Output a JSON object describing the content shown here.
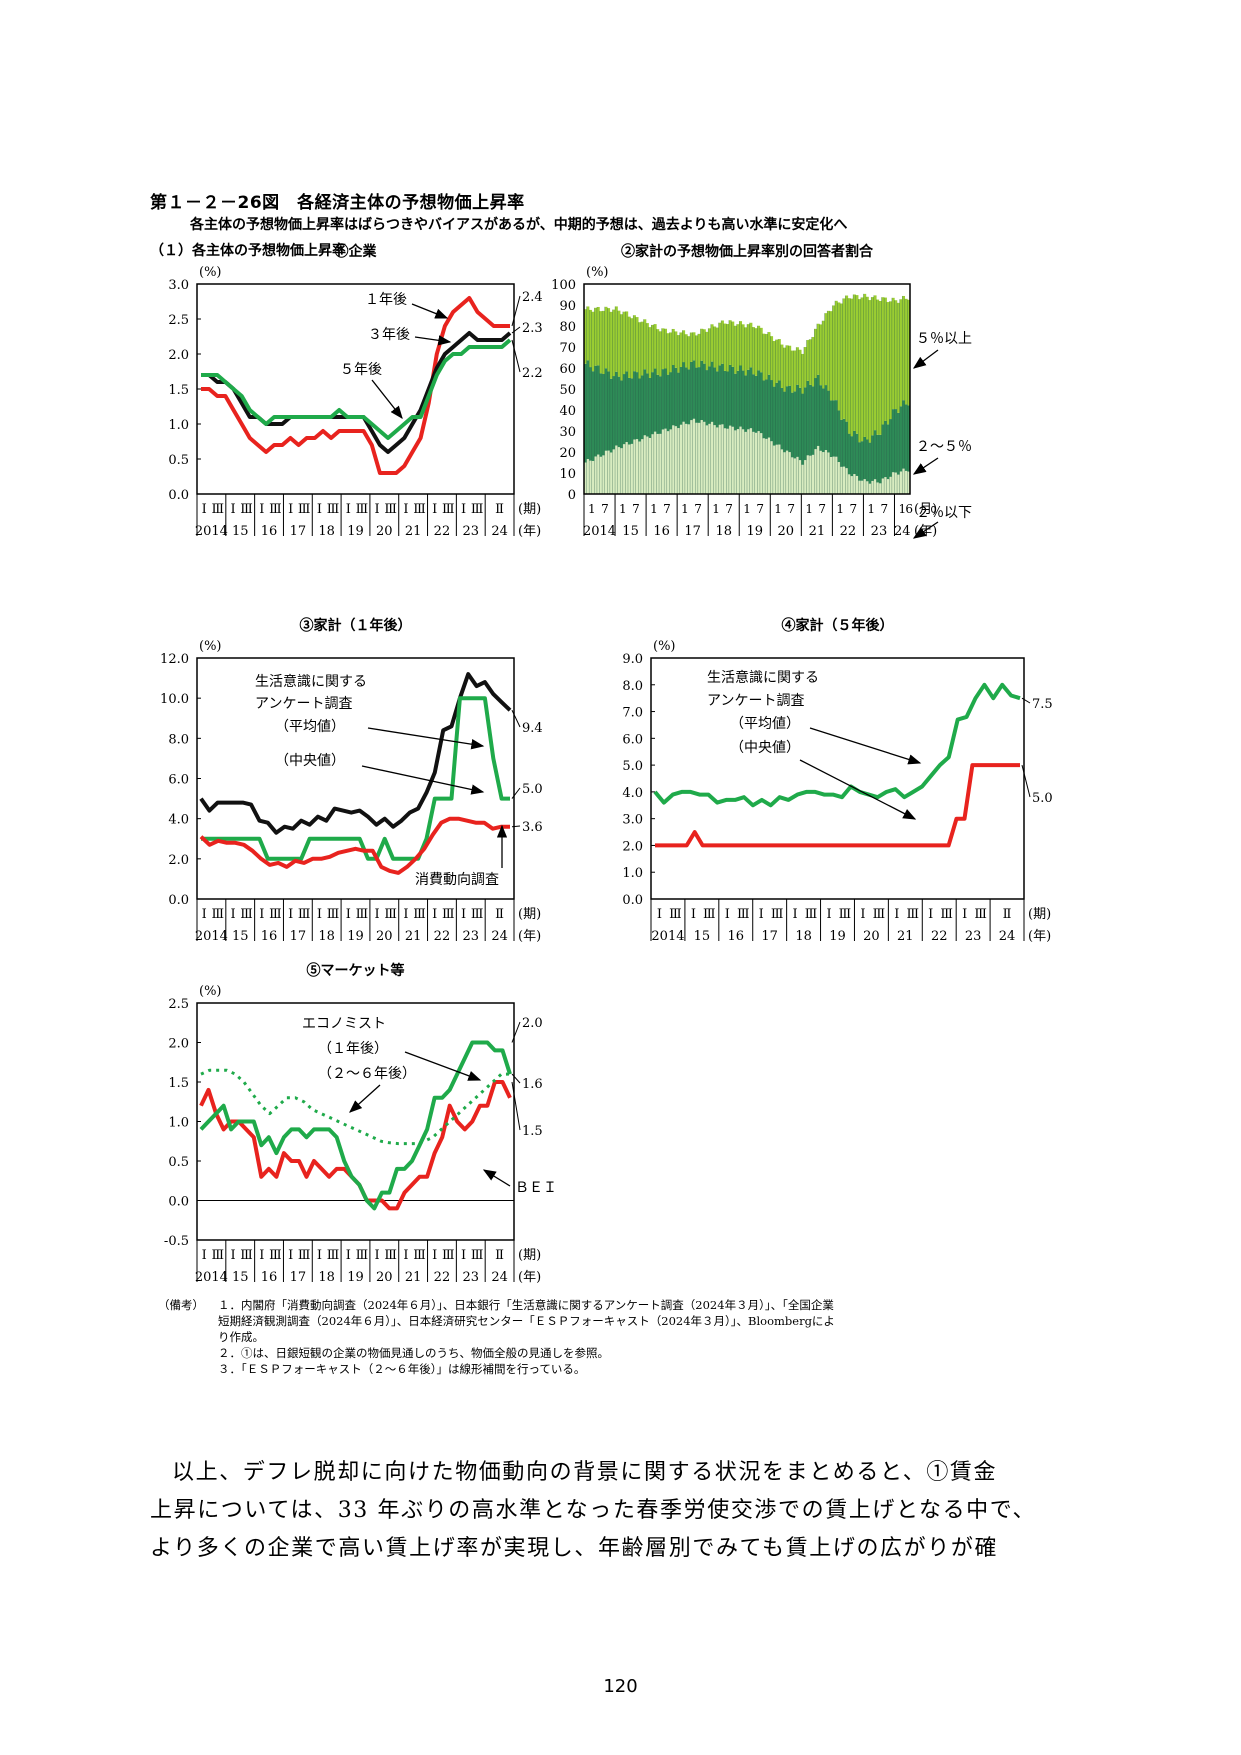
{
  "header": {
    "title": "第１－２－26図　各経済主体の予想物価上昇率",
    "subtitle": "各主体の予想物価上昇率はばらつきやバイアスがあるが、中期的予想は、過去よりも高い水準に安定化へ",
    "section": "（１）各主体の予想物価上昇率"
  },
  "colors": {
    "red": "#e8231e",
    "green": "#1faa4a",
    "black": "#111111",
    "darkgreen": "#2e8b57",
    "lightgreen": "#9acd32",
    "pale": "#d8ecc0"
  },
  "chart_data": [
    {
      "id": "c1",
      "type": "line",
      "title": "①企業",
      "unit": "(%)",
      "xunit": "(期)",
      "yunit": "(年)",
      "ylim": [
        0,
        3
      ],
      "yticks": [
        "3.0",
        "2.5",
        "2.0",
        "1.5",
        "1.0",
        "0.5",
        "0.0"
      ],
      "years": [
        "2014",
        "15",
        "16",
        "17",
        "18",
        "19",
        "20",
        "21",
        "22",
        "23",
        "24"
      ],
      "qlabels": [
        "Ⅰ",
        "Ⅲ"
      ],
      "last_q": "Ⅱ",
      "annotations": {
        "one": "１年後",
        "three": "３年後",
        "five": "５年後"
      },
      "end_labels": [
        "2.4",
        "2.3",
        "2.2"
      ],
      "series": [
        {
          "name": "１年後",
          "color": "red",
          "values": [
            1.5,
            1.5,
            1.4,
            1.4,
            1.2,
            1.0,
            0.8,
            0.7,
            0.6,
            0.7,
            0.7,
            0.8,
            0.7,
            0.8,
            0.8,
            0.9,
            0.8,
            0.9,
            0.9,
            0.9,
            0.9,
            0.7,
            0.3,
            0.3,
            0.3,
            0.4,
            0.6,
            0.8,
            1.3,
            2.0,
            2.4,
            2.6,
            2.7,
            2.8,
            2.6,
            2.5,
            2.4,
            2.4,
            2.4
          ]
        },
        {
          "name": "３年後",
          "color": "black",
          "values": [
            1.7,
            1.7,
            1.6,
            1.6,
            1.5,
            1.3,
            1.1,
            1.1,
            1.0,
            1.0,
            1.0,
            1.1,
            1.1,
            1.1,
            1.1,
            1.1,
            1.1,
            1.1,
            1.1,
            1.1,
            1.1,
            0.9,
            0.7,
            0.6,
            0.7,
            0.8,
            1.0,
            1.2,
            1.5,
            1.8,
            2.0,
            2.1,
            2.2,
            2.3,
            2.2,
            2.2,
            2.2,
            2.2,
            2.3
          ]
        },
        {
          "name": "５年後",
          "color": "green",
          "values": [
            1.7,
            1.7,
            1.7,
            1.6,
            1.5,
            1.4,
            1.2,
            1.1,
            1.0,
            1.1,
            1.1,
            1.1,
            1.1,
            1.1,
            1.1,
            1.1,
            1.1,
            1.2,
            1.1,
            1.1,
            1.1,
            1.0,
            0.9,
            0.8,
            0.9,
            1.0,
            1.1,
            1.1,
            1.4,
            1.7,
            1.9,
            2.0,
            2.0,
            2.1,
            2.1,
            2.1,
            2.1,
            2.1,
            2.2
          ]
        }
      ]
    },
    {
      "id": "c2",
      "type": "bar",
      "title": "②家計の予想物価上昇率別の回答者割合",
      "unit": "(%)",
      "xunit": "(月)",
      "yunit": "(年)",
      "ylim": [
        0,
        100
      ],
      "yticks": [
        "100",
        "90",
        "80",
        "70",
        "60",
        "50",
        "40",
        "30",
        "20",
        "10",
        "0"
      ],
      "years": [
        "2014",
        "15",
        "16",
        "17",
        "18",
        "19",
        "20",
        "21",
        "22",
        "23",
        "24"
      ],
      "month_labels": [
        "1",
        "7",
        "6"
      ],
      "legend": [
        "５％以上",
        "２～５％",
        "２％以下"
      ],
      "monthly_start": "2014-01",
      "monthly_end": "2024-06",
      "anchors_le2": [
        [
          0,
          15
        ],
        [
          12,
          22
        ],
        [
          30,
          30
        ],
        [
          42,
          35
        ],
        [
          54,
          32
        ],
        [
          66,
          30
        ],
        [
          78,
          20
        ],
        [
          84,
          15
        ],
        [
          90,
          22
        ],
        [
          96,
          18
        ],
        [
          102,
          10
        ],
        [
          108,
          6
        ],
        [
          114,
          6
        ],
        [
          120,
          10
        ],
        [
          126,
          12
        ]
      ],
      "anchors_2to5": [
        [
          0,
          62
        ],
        [
          12,
          56
        ],
        [
          30,
          58
        ],
        [
          42,
          62
        ],
        [
          54,
          60
        ],
        [
          66,
          58
        ],
        [
          78,
          50
        ],
        [
          84,
          50
        ],
        [
          90,
          55
        ],
        [
          96,
          45
        ],
        [
          102,
          30
        ],
        [
          108,
          25
        ],
        [
          114,
          30
        ],
        [
          120,
          40
        ],
        [
          126,
          45
        ]
      ],
      "anchors_total": [
        [
          0,
          88
        ],
        [
          12,
          88
        ],
        [
          30,
          78
        ],
        [
          42,
          76
        ],
        [
          54,
          82
        ],
        [
          66,
          80
        ],
        [
          78,
          70
        ],
        [
          84,
          68
        ],
        [
          90,
          80
        ],
        [
          96,
          90
        ],
        [
          102,
          94
        ],
        [
          108,
          94
        ],
        [
          114,
          93
        ],
        [
          120,
          92
        ],
        [
          126,
          94
        ]
      ]
    },
    {
      "id": "c3",
      "type": "line",
      "title": "③家計（１年後）",
      "unit": "(%)",
      "xunit": "(期)",
      "yunit": "(年)",
      "ylim": [
        0,
        12
      ],
      "yticks": [
        "12.0",
        "10.0",
        "8.0",
        "6.0",
        "4.0",
        "2.0",
        "0.0"
      ],
      "years": [
        "2014",
        "15",
        "16",
        "17",
        "18",
        "19",
        "20",
        "21",
        "22",
        "23",
        "24"
      ],
      "qlabels": [
        "Ⅰ",
        "Ⅲ"
      ],
      "last_q": "Ⅱ",
      "annotations": {
        "survey": "生活意識に関する",
        "survey2": "アンケート調査",
        "mean": "（平均値）",
        "median": "（中央値）",
        "cons": "消費動向調査"
      },
      "end_labels": [
        "9.4",
        "5.0",
        "3.6"
      ],
      "series": [
        {
          "name": "平均値",
          "color": "black",
          "values": [
            5.0,
            4.4,
            4.8,
            4.8,
            4.8,
            4.8,
            4.7,
            3.9,
            3.8,
            3.3,
            3.6,
            3.5,
            3.9,
            3.7,
            4.1,
            3.9,
            4.5,
            4.4,
            4.3,
            4.4,
            4.1,
            3.7,
            4.0,
            3.6,
            3.9,
            4.3,
            4.5,
            5.3,
            6.3,
            8.4,
            8.6,
            10.0,
            11.2,
            10.6,
            10.8,
            10.2,
            9.8,
            9.4
          ]
        },
        {
          "name": "中央値",
          "color": "green",
          "values": [
            3.0,
            3.0,
            3.0,
            3.0,
            3.0,
            3.0,
            3.0,
            3.0,
            2.0,
            2.0,
            2.0,
            2.0,
            2.0,
            3.0,
            3.0,
            3.0,
            3.0,
            3.0,
            3.0,
            3.0,
            2.0,
            2.0,
            3.0,
            2.0,
            2.0,
            2.0,
            2.0,
            3.0,
            5.0,
            5.0,
            5.0,
            10.0,
            10.0,
            10.0,
            10.0,
            7.0,
            5.0,
            5.0
          ]
        },
        {
          "name": "消費動向調査",
          "color": "red",
          "values": [
            3.1,
            2.7,
            2.9,
            2.8,
            2.8,
            2.7,
            2.4,
            2.0,
            1.7,
            1.8,
            1.6,
            1.9,
            1.8,
            2.0,
            2.0,
            2.1,
            2.3,
            2.4,
            2.5,
            2.4,
            2.4,
            1.6,
            1.4,
            1.3,
            1.6,
            2.0,
            2.5,
            3.2,
            3.8,
            4.0,
            4.0,
            3.9,
            3.8,
            3.8,
            3.5,
            3.6,
            3.6
          ]
        }
      ]
    },
    {
      "id": "c4",
      "type": "line",
      "title": "④家計（５年後）",
      "unit": "(%)",
      "xunit": "(期)",
      "yunit": "(年)",
      "ylim": [
        0,
        9
      ],
      "yticks": [
        "9.0",
        "8.0",
        "7.0",
        "6.0",
        "5.0",
        "4.0",
        "3.0",
        "2.0",
        "1.0",
        "0.0"
      ],
      "years": [
        "2014",
        "15",
        "16",
        "17",
        "18",
        "19",
        "20",
        "21",
        "22",
        "23",
        "24"
      ],
      "qlabels": [
        "Ⅰ",
        "Ⅲ"
      ],
      "last_q": "Ⅱ",
      "annotations": {
        "survey": "生活意識に関する",
        "survey2": "アンケート調査",
        "mean": "（平均値）",
        "median": "（中央値）"
      },
      "end_labels": [
        "7.5",
        "5.0"
      ],
      "series": [
        {
          "name": "平均値",
          "color": "green",
          "values": [
            4.0,
            3.6,
            3.9,
            4.0,
            4.0,
            3.9,
            3.9,
            3.6,
            3.7,
            3.7,
            3.8,
            3.5,
            3.7,
            3.5,
            3.8,
            3.7,
            3.9,
            4.0,
            4.0,
            3.9,
            3.9,
            3.8,
            4.2,
            4.0,
            3.9,
            3.8,
            4.0,
            4.1,
            3.8,
            4.0,
            4.2,
            4.6,
            5.0,
            5.3,
            6.7,
            6.8,
            7.5,
            8.0,
            7.5,
            8.0,
            7.6,
            7.5
          ]
        },
        {
          "name": "中央値",
          "color": "red",
          "values": [
            2.0,
            2.0,
            2.0,
            2.0,
            2.0,
            2.5,
            2.0,
            2.0,
            2.0,
            2.0,
            2.0,
            2.0,
            2.0,
            2.0,
            2.0,
            2.0,
            2.0,
            2.0,
            2.0,
            2.0,
            2.0,
            2.0,
            2.0,
            2.0,
            2.0,
            2.0,
            2.0,
            2.0,
            2.0,
            2.0,
            2.0,
            2.0,
            2.0,
            2.0,
            2.0,
            2.0,
            2.0,
            2.0,
            3.0,
            3.0,
            5.0,
            5.0,
            5.0,
            5.0,
            5.0,
            5.0,
            5.0
          ]
        }
      ]
    },
    {
      "id": "c5",
      "type": "line",
      "title": "⑤マーケット等",
      "unit": "(%)",
      "xunit": "(期)",
      "yunit": "(年)",
      "ylim": [
        -0.5,
        2.5
      ],
      "yticks": [
        "2.5",
        "2.0",
        "1.5",
        "1.0",
        "0.5",
        "0.0",
        "-0.5"
      ],
      "years": [
        "2014",
        "15",
        "16",
        "17",
        "18",
        "19",
        "20",
        "21",
        "22",
        "23",
        "24"
      ],
      "qlabels": [
        "Ⅰ",
        "Ⅲ"
      ],
      "last_q": "Ⅱ",
      "annotations": {
        "econ": "エコノミスト",
        "one": "（１年後）",
        "two": "（２～６年後）",
        "bei": "ＢＥＩ"
      },
      "end_labels": [
        "2.0",
        "1.6",
        "1.5"
      ],
      "series": [
        {
          "name": "BEI",
          "color": "red",
          "values": [
            1.2,
            1.4,
            1.1,
            0.9,
            1.0,
            1.0,
            0.9,
            0.8,
            0.3,
            0.4,
            0.3,
            0.6,
            0.5,
            0.5,
            0.3,
            0.5,
            0.4,
            0.3,
            0.4,
            0.4,
            0.3,
            0.2,
            0.0,
            0.0,
            0.0,
            -0.1,
            -0.1,
            0.1,
            0.2,
            0.3,
            0.3,
            0.6,
            0.8,
            1.2,
            1.0,
            0.9,
            1.0,
            1.2,
            1.2,
            1.5,
            1.5,
            1.3
          ]
        },
        {
          "name": "エコノミスト（１年後）",
          "color": "green",
          "values": [
            0.9,
            1.0,
            1.1,
            1.2,
            0.9,
            1.0,
            1.0,
            1.0,
            0.7,
            0.8,
            0.6,
            0.8,
            0.9,
            0.9,
            0.8,
            0.9,
            0.9,
            0.9,
            0.8,
            0.5,
            0.3,
            0.2,
            0.0,
            -0.1,
            0.1,
            0.1,
            0.4,
            0.4,
            0.5,
            0.7,
            0.9,
            1.3,
            1.3,
            1.4,
            1.6,
            1.8,
            2.0,
            2.0,
            2.0,
            1.9,
            1.9,
            1.6
          ]
        },
        {
          "name": "エコノミスト（２～６年後）",
          "color": "green",
          "dash": true,
          "values": [
            1.6,
            1.65,
            1.65,
            1.65,
            1.6,
            1.5,
            1.35,
            1.2,
            1.1,
            1.2,
            1.3,
            1.3,
            1.25,
            1.15,
            1.1,
            1.05,
            1.0,
            0.95,
            0.9,
            0.85,
            0.8,
            0.75,
            0.73,
            0.72,
            0.72,
            0.72,
            0.75,
            0.8,
            0.9,
            1.0,
            1.1,
            1.2,
            1.3,
            1.4,
            1.5,
            1.6,
            1.6
          ]
        }
      ]
    }
  ],
  "notes": {
    "label": "（備考）",
    "n1": "１．内閣府「消費動向調査（2024年６月）」、日本銀行「生活意識に関するアンケート調査（2024年３月）」、「全国企業",
    "n1b": "短期経済観測調査（2024年６月）」、日本経済研究センター「ＥＳＰフォーキャスト（2024年３月）」、Bloombergによ",
    "n1c": "り作成。",
    "n2": "２．①は、日銀短観の企業の物価見通しのうち、物価全般の見通しを参照。",
    "n3": "３．「ＥＳＰフォーキャスト（２～６年後）」は線形補間を行っている。"
  },
  "body": {
    "line1": "以上、デフレ脱却に向けた物価動向の背景に関する状況をまとめると、①賃金",
    "line2": "上昇については、33 年ぶりの高水準となった春季労使交渉での賃上げとなる中で、",
    "line3": "より多くの企業で高い賃上げ率が実現し、年齢層別でみても賃上げの広がりが確"
  },
  "page_number": "120"
}
